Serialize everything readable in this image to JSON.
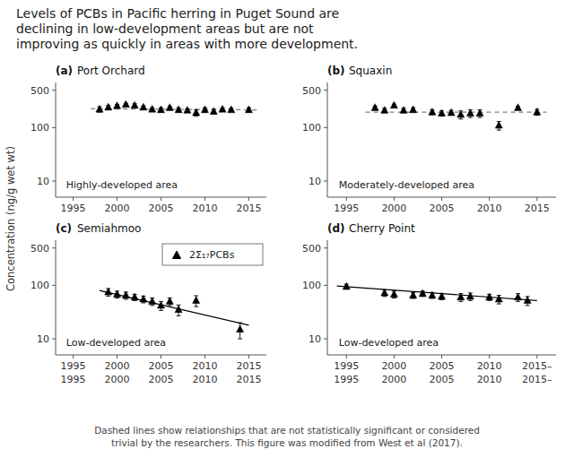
{
  "chart_data": {
    "type": "scatter",
    "title": "Levels of PCBs in Pacific herring in Puget Sound are\ndeclining in low-development areas but are not\nimproving as quickly in areas with more development.",
    "footnote": "Dashed lines show relationships that are not statistically significant or considered\ntrivial by the researchers. This figure was modified from West et al (2017).",
    "ylabel": "Concentration (ng/g wet wt)",
    "panels": [
      {
        "type": "scatter",
        "label": "(a)",
        "subtitle": "Port Orchard",
        "annotation": "Highly-developed area",
        "log": "y",
        "marker": "triangle",
        "color": "black",
        "xlim": [
          1993,
          2017
        ],
        "xticks": [
          1995,
          2000,
          2005,
          2010,
          2015
        ],
        "ylim": [
          5,
          700
        ],
        "yticks": [
          10,
          100,
          500
        ],
        "x": [
          1998,
          1999,
          2000,
          2001,
          2002,
          2003,
          2004,
          2005,
          2006,
          2007,
          2008,
          2009,
          2010,
          2011,
          2012,
          2013,
          2015
        ],
        "values": [
          220,
          240,
          255,
          270,
          260,
          240,
          220,
          215,
          235,
          215,
          210,
          190,
          215,
          200,
          220,
          215,
          215
        ],
        "errors": [
          25,
          20,
          15,
          15,
          20,
          15,
          15,
          20,
          15,
          20,
          15,
          25,
          20,
          20,
          15,
          15,
          20
        ],
        "trend": {
          "type": "line",
          "line_style": "dashed",
          "color": "gray",
          "x": [
            1997,
            2016
          ],
          "values": [
            225,
            215
          ]
        }
      },
      {
        "type": "scatter",
        "label": "(b)",
        "subtitle": "Squaxin",
        "annotation": "Moderately-developed area",
        "log": "y",
        "marker": "triangle",
        "color": "black",
        "xlim": [
          1993,
          2017
        ],
        "xticks": [
          1995,
          2000,
          2005,
          2010,
          2015
        ],
        "ylim": [
          5,
          700
        ],
        "yticks": [
          10,
          100,
          500
        ],
        "x": [
          1998,
          1999,
          2000,
          2001,
          2002,
          2004,
          2005,
          2006,
          2007,
          2008,
          2009,
          2011,
          2013,
          2015
        ],
        "values": [
          235,
          210,
          260,
          210,
          215,
          195,
          185,
          190,
          175,
          185,
          185,
          110,
          235,
          195
        ],
        "errors": [
          20,
          20,
          15,
          20,
          20,
          20,
          20,
          20,
          30,
          30,
          30,
          20,
          15,
          25
        ],
        "trend": {
          "type": "line",
          "line_style": "dashed",
          "color": "gray",
          "x": [
            1997,
            2016
          ],
          "values": [
            195,
            195
          ]
        }
      },
      {
        "type": "scatter",
        "label": "(c)",
        "subtitle": "Semiahmoo",
        "annotation": "Low-developed area",
        "name": "2Σ₁₇PCBs",
        "legend": "upper right",
        "log": "y",
        "marker": "triangle",
        "color": "black",
        "xlim": [
          1993,
          2017
        ],
        "xticks": [
          1995,
          2000,
          2005,
          2010,
          2015
        ],
        "x2ticks": [
          1995,
          2000,
          2005,
          2010,
          2015
        ],
        "ylim": [
          5,
          700
        ],
        "yticks": [
          10,
          100,
          500
        ],
        "x": [
          1999,
          2000,
          2001,
          2002,
          2003,
          2004,
          2005,
          2006,
          2007,
          2009,
          2014
        ],
        "values": [
          75,
          68,
          65,
          60,
          55,
          50,
          42,
          50,
          35,
          52,
          15
        ],
        "errors": [
          12,
          10,
          10,
          8,
          8,
          8,
          8,
          8,
          8,
          12,
          5
        ],
        "trend": {
          "type": "line",
          "line_style": "solid",
          "color": "black",
          "x": [
            1998,
            2015
          ],
          "values": [
            80,
            18
          ]
        }
      },
      {
        "type": "scatter",
        "label": "(d)",
        "subtitle": "Cherry Point",
        "annotation": "Low-developed area",
        "log": "y",
        "marker": "triangle",
        "color": "black",
        "xlim": [
          1993,
          2017
        ],
        "xticks": [
          1995,
          2000,
          2005,
          2010,
          {
            "value": 2015,
            "label": "2015–"
          }
        ],
        "x2ticks": [
          1995,
          2000,
          2005,
          2010,
          {
            "value": 2015,
            "label": "2015–"
          }
        ],
        "ylim": [
          5,
          700
        ],
        "yticks": [
          10,
          100,
          500
        ],
        "x": [
          1995,
          1999,
          2000,
          2002,
          2003,
          2004,
          2005,
          2007,
          2008,
          2010,
          2011,
          2013,
          2014
        ],
        "values": [
          95,
          72,
          68,
          65,
          70,
          65,
          62,
          60,
          62,
          60,
          55,
          60,
          52
        ],
        "errors": [
          10,
          10,
          10,
          8,
          8,
          8,
          8,
          10,
          10,
          8,
          10,
          10,
          10
        ],
        "trend": {
          "type": "line",
          "line_style": "solid",
          "color": "black",
          "x": [
            1994,
            2015
          ],
          "values": [
            97,
            52
          ]
        }
      }
    ]
  }
}
